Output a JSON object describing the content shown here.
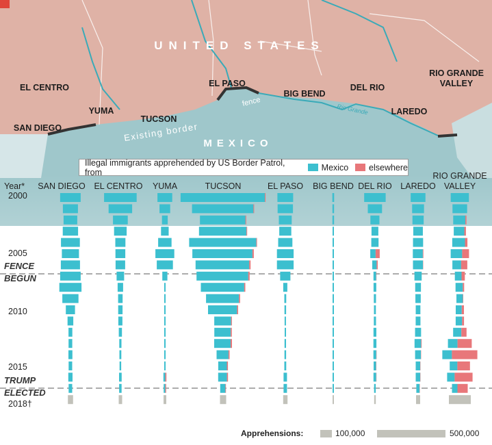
{
  "map": {
    "country_us": "UNITED STATES",
    "country_mx": "MEXICO",
    "fence_label": "fence",
    "existing_border_label": "Existing border",
    "river_label": "Rio Grande",
    "sectors": [
      {
        "id": "el-centro",
        "name": "EL CENTRO"
      },
      {
        "id": "yuma",
        "name": "YUMA"
      },
      {
        "id": "san-diego",
        "name": "SAN DIEGO"
      },
      {
        "id": "tucson",
        "name": "TUCSON"
      },
      {
        "id": "el-paso",
        "name": "EL PASO"
      },
      {
        "id": "big-bend",
        "name": "BIG BEND"
      },
      {
        "id": "del-rio",
        "name": "DEL RIO"
      },
      {
        "id": "laredo",
        "name": "LAREDO"
      },
      {
        "id": "rio-grande-valley",
        "name": "RIO GRANDE\nVALLEY"
      }
    ],
    "colors": {
      "us_land": "#dfb2a6",
      "mx_land": "#9fc7cb",
      "fence": "#333333",
      "river": "#3aaab8",
      "accent": "#e0453a"
    }
  },
  "legend": {
    "title": "Illegal immigrants apprehended by US Border Patrol, from",
    "mexico_label": "Mexico",
    "elsewhere_label": "elsewhere"
  },
  "footer": {
    "label": "Apprehensions:",
    "scale_small_label": "100,000",
    "scale_large_label": "500,000"
  },
  "chart_data": {
    "type": "bar",
    "title": "Illegal immigrants apprehended by US Border Patrol, from",
    "units": "apprehensions",
    "year_axis_label": "Year*",
    "year_tick_labels": [
      {
        "year": 2000,
        "label": "2000"
      },
      {
        "year": 2005,
        "label": "2005"
      },
      {
        "year": 2010,
        "label": "2010"
      },
      {
        "year": 2015,
        "label": "2015"
      },
      {
        "year": 2018,
        "label": "2018†"
      }
    ],
    "events": [
      {
        "label": "FENCE\nBEGUN",
        "after_year": 2006
      },
      {
        "label": "TRUMP\nELECTED",
        "after_year": 2016
      }
    ],
    "years": [
      2000,
      2001,
      2002,
      2003,
      2004,
      2005,
      2006,
      2007,
      2008,
      2009,
      2010,
      2011,
      2012,
      2013,
      2014,
      2015,
      2016,
      2017,
      2018
    ],
    "colors": {
      "mexico": "#3cbfcf",
      "elsewhere": "#e8777a",
      "total": "#c2c2ba"
    },
    "sectors": [
      {
        "name": "SAN DIEGO",
        "mexico": [
          150000,
          110000,
          100000,
          112000,
          138000,
          125000,
          140000,
          150000,
          162000,
          118000,
          67000,
          42000,
          28000,
          27000,
          29000,
          26000,
          31000,
          26000,
          0
        ],
        "elsewhere": [
          1000,
          1000,
          1000,
          1000,
          1000,
          1000,
          1000,
          1000,
          1000,
          1000,
          1000,
          1000,
          1000,
          1000,
          1000,
          1000,
          1000,
          1000,
          0
        ],
        "total": [
          null,
          null,
          null,
          null,
          null,
          null,
          null,
          null,
          null,
          null,
          null,
          null,
          null,
          null,
          null,
          null,
          null,
          null,
          38000
        ]
      },
      {
        "name": "EL CENTRO",
        "mexico": [
          238000,
          172000,
          108000,
          92000,
          74000,
          72000,
          70000,
          55000,
          40000,
          33000,
          32000,
          30000,
          23000,
          16000,
          14000,
          12000,
          19000,
          18000,
          0
        ],
        "elsewhere": [
          1000,
          1000,
          1000,
          1000,
          1000,
          1000,
          1000,
          1000,
          1000,
          1000,
          1000,
          1000,
          1000,
          1000,
          1000,
          1000,
          1000,
          1000,
          0
        ],
        "total": [
          null,
          null,
          null,
          null,
          null,
          null,
          null,
          null,
          null,
          null,
          null,
          null,
          null,
          null,
          null,
          null,
          null,
          null,
          25000
        ]
      },
      {
        "name": "YUMA",
        "mexico": [
          108000,
          78000,
          42000,
          56000,
          98000,
          138000,
          118000,
          37000,
          8000,
          6000,
          7000,
          5900,
          6500,
          6100,
          5900,
          7100,
          14000,
          12000,
          0
        ],
        "elsewhere": [
          1000,
          1000,
          1000,
          1000,
          1000,
          1000,
          1000,
          1000,
          1000,
          1000,
          1000,
          1000,
          1000,
          1000,
          1000,
          1000,
          8000,
          6000,
          0
        ],
        "total": [
          null,
          null,
          null,
          null,
          null,
          null,
          null,
          null,
          null,
          null,
          null,
          null,
          null,
          null,
          null,
          null,
          null,
          null,
          20000
        ]
      },
      {
        "name": "TUCSON",
        "mexico": [
          616000,
          449000,
          333000,
          347000,
          491000,
          439000,
          392000,
          378000,
          317000,
          241000,
          212000,
          123000,
          120000,
          120000,
          87000,
          63000,
          64000,
          38000,
          0
        ],
        "elsewhere": [
          5000,
          5000,
          5000,
          5000,
          5000,
          10000,
          10000,
          10000,
          8000,
          8000,
          8000,
          6000,
          8000,
          10000,
          8000,
          8000,
          8000,
          4000,
          0
        ],
        "total": [
          null,
          null,
          null,
          null,
          null,
          null,
          null,
          null,
          null,
          null,
          null,
          null,
          null,
          null,
          null,
          null,
          null,
          null,
          45000
        ]
      },
      {
        "name": "EL PASO",
        "mexico": [
          115000,
          112000,
          94000,
          88000,
          104000,
          122000,
          122000,
          75000,
          30000,
          14000,
          12000,
          10000,
          9000,
          11000,
          12000,
          14000,
          25000,
          25000,
          0
        ],
        "elsewhere": [
          1000,
          1000,
          1000,
          1000,
          1000,
          1000,
          1000,
          1000,
          1000,
          1000,
          1000,
          1000,
          1000,
          1000,
          1000,
          1000,
          1000,
          1000,
          0
        ],
        "total": [
          null,
          null,
          null,
          null,
          null,
          null,
          null,
          null,
          null,
          null,
          null,
          null,
          null,
          null,
          null,
          null,
          null,
          null,
          32000
        ]
      },
      {
        "name": "BIG BEND",
        "mexico": [
          13000,
          12000,
          12000,
          10000,
          10000,
          10000,
          9000,
          6000,
          5000,
          6000,
          5000,
          4000,
          3000,
          3500,
          4000,
          5000,
          6000,
          6000,
          0
        ],
        "elsewhere": [
          0,
          0,
          0,
          0,
          0,
          0,
          0,
          0,
          0,
          0,
          0,
          0,
          0,
          0,
          0,
          0,
          0,
          0,
          0
        ],
        "total": [
          null,
          null,
          null,
          null,
          null,
          null,
          null,
          null,
          null,
          null,
          null,
          null,
          null,
          null,
          null,
          null,
          null,
          null,
          6000
        ]
      },
      {
        "name": "DEL RIO",
        "mexico": [
          157000,
          104000,
          66000,
          50000,
          53000,
          39000,
          32000,
          20000,
          20000,
          16000,
          14000,
          16000,
          21000,
          22000,
          21000,
          18000,
          20000,
          12000,
          0
        ],
        "elsewhere": [
          1000,
          1000,
          1000,
          1000,
          1000,
          30000,
          8000,
          2000,
          1000,
          1000,
          1000,
          1000,
          1000,
          1000,
          2000,
          2000,
          2000,
          1000,
          0
        ],
        "total": [
          null,
          null,
          null,
          null,
          null,
          null,
          null,
          null,
          null,
          null,
          null,
          null,
          null,
          null,
          null,
          null,
          null,
          null,
          12000
        ]
      },
      {
        "name": "LAREDO",
        "mexico": [
          108000,
          87000,
          82000,
          70000,
          74000,
          73000,
          73000,
          53000,
          42000,
          39000,
          34000,
          35000,
          44000,
          48000,
          42000,
          33000,
          33000,
          24000,
          0
        ],
        "elsewhere": [
          500,
          500,
          500,
          500,
          500,
          4000,
          2000,
          500,
          500,
          500,
          500,
          500,
          500,
          4000,
          2000,
          2000,
          2000,
          2000,
          0
        ],
        "total": [
          null,
          null,
          null,
          null,
          null,
          null,
          null,
          null,
          null,
          null,
          null,
          null,
          null,
          null,
          null,
          null,
          null,
          null,
          30000
        ]
      },
      {
        "name": "RIO GRANDE\nVALLEY",
        "mexico": [
          133000,
          107000,
          89000,
          77000,
          93000,
          84000,
          64000,
          49000,
          53000,
          47000,
          44000,
          47000,
          60000,
          70000,
          70000,
          56000,
          55000,
          40000,
          0
        ],
        "elsewhere": [
          500,
          500,
          8000,
          12000,
          18000,
          50000,
          45000,
          24000,
          10000,
          3000,
          16000,
          14000,
          38000,
          104000,
          186000,
          92000,
          131000,
          75000,
          0
        ],
        "total": [
          null,
          null,
          null,
          null,
          null,
          null,
          null,
          null,
          null,
          null,
          null,
          null,
          null,
          null,
          null,
          null,
          null,
          null,
          160000
        ]
      }
    ]
  }
}
